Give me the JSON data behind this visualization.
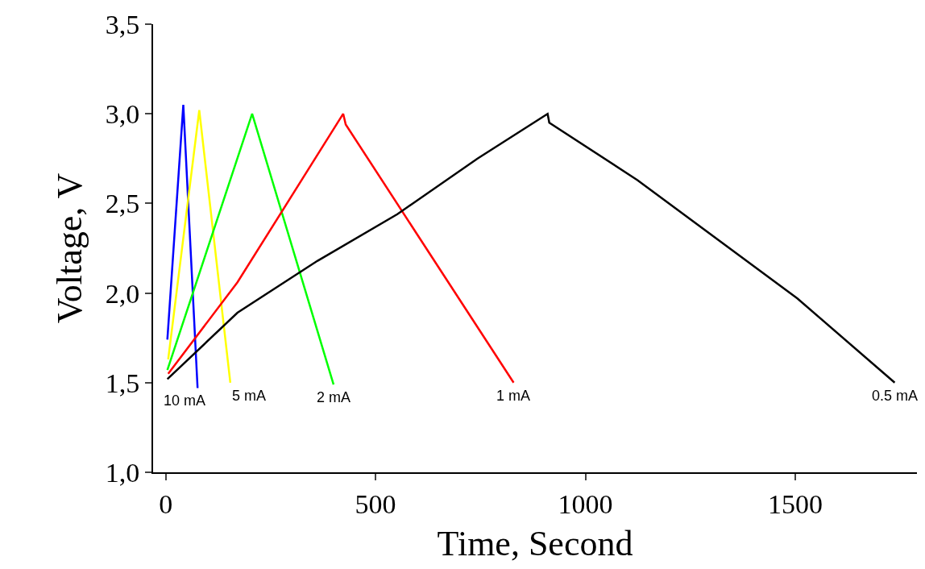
{
  "chart_data": {
    "type": "line",
    "xlabel": "Time, Second",
    "ylabel": "Voltage, V",
    "xlim": [
      -30,
      1790
    ],
    "ylim": [
      1.0,
      3.5
    ],
    "xticks": [
      0,
      500,
      1000,
      1500
    ],
    "yticks": [
      {
        "value": 1.0,
        "label": "1,0"
      },
      {
        "value": 1.5,
        "label": "1,5"
      },
      {
        "value": 2.0,
        "label": "2,0"
      },
      {
        "value": 2.5,
        "label": "2,5"
      },
      {
        "value": 3.0,
        "label": "3,0"
      },
      {
        "value": 3.5,
        "label": "3,5"
      }
    ],
    "legend": false,
    "marker": "none",
    "line_style": "solid",
    "series": [
      {
        "name": "10 mA",
        "color": "#0000ff",
        "x": [
          4,
          42,
          76
        ],
        "values": [
          1.74,
          3.05,
          1.47
        ]
      },
      {
        "name": "5 mA",
        "color": "#ffff00",
        "x": [
          6,
          80,
          154
        ],
        "values": [
          1.63,
          3.02,
          1.5
        ]
      },
      {
        "name": "2 mA",
        "color": "#00ff00",
        "x": [
          4,
          206,
          400
        ],
        "values": [
          1.57,
          3.0,
          1.49
        ]
      },
      {
        "name": "1 mA",
        "color": "#ff0000",
        "x": [
          6,
          171,
          423,
          429,
          829
        ],
        "values": [
          1.55,
          2.06,
          3.0,
          2.94,
          1.5
        ]
      },
      {
        "name": "0.5 mA",
        "color": "#000000",
        "x": [
          4,
          171,
          362,
          552,
          743,
          910,
          914,
          1124,
          1505,
          1737
        ],
        "values": [
          1.52,
          1.89,
          2.18,
          2.44,
          2.75,
          3.0,
          2.95,
          2.63,
          1.97,
          1.5
        ]
      }
    ]
  }
}
